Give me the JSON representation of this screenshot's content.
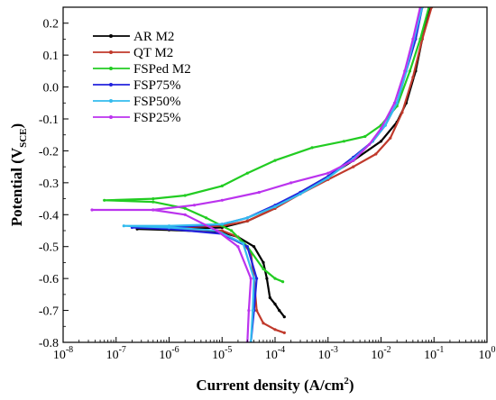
{
  "chart_data": {
    "type": "line",
    "title": "",
    "xlabel": {
      "main": "Current density (A/cm",
      "sup": "2",
      "end": ")"
    },
    "ylabel": {
      "main": "Potential (V",
      "sub": "SCE",
      "end": ")"
    },
    "xscale": "log",
    "xlim": [
      1e-08,
      1
    ],
    "ylim": [
      -0.8,
      0.25
    ],
    "grid": false,
    "legend_position": "top-left",
    "x_ticks": [
      {
        "value": 1e-08,
        "label": "10",
        "exp": "-8"
      },
      {
        "value": 1e-07,
        "label": "10",
        "exp": "-7"
      },
      {
        "value": 1e-06,
        "label": "10",
        "exp": "-6"
      },
      {
        "value": 1e-05,
        "label": "10",
        "exp": "-5"
      },
      {
        "value": 0.0001,
        "label": "10",
        "exp": "-4"
      },
      {
        "value": 0.001,
        "label": "10",
        "exp": "-3"
      },
      {
        "value": 0.01,
        "label": "10",
        "exp": "-2"
      },
      {
        "value": 0.1,
        "label": "10",
        "exp": "-1"
      },
      {
        "value": 1,
        "label": "10",
        "exp": "0"
      }
    ],
    "y_ticks": [
      {
        "value": 0.2,
        "label": "0.2"
      },
      {
        "value": 0.1,
        "label": "0.1"
      },
      {
        "value": 0.0,
        "label": "0.0"
      },
      {
        "value": -0.1,
        "label": "-0.1"
      },
      {
        "value": -0.2,
        "label": "-0.2"
      },
      {
        "value": -0.3,
        "label": "-0.3"
      },
      {
        "value": -0.4,
        "label": "-0.4"
      },
      {
        "value": -0.5,
        "label": "-0.5"
      },
      {
        "value": -0.6,
        "label": "-0.6"
      },
      {
        "value": -0.7,
        "label": "-0.7"
      },
      {
        "value": -0.8,
        "label": "-0.8"
      }
    ],
    "series": [
      {
        "name": "AR M2",
        "color": "#000000",
        "cathodic": [
          [
            0.00015,
            -0.72
          ],
          [
            0.00012,
            -0.7
          ],
          [
            0.0001,
            -0.68
          ],
          [
            8e-05,
            -0.66
          ],
          [
            7e-05,
            -0.6
          ],
          [
            6e-05,
            -0.55
          ],
          [
            4e-05,
            -0.5
          ],
          [
            2e-05,
            -0.47
          ],
          [
            1e-05,
            -0.455
          ],
          [
            1e-06,
            -0.448
          ],
          [
            2.5e-07,
            -0.445
          ]
        ],
        "anodic": [
          [
            2.5e-07,
            -0.445
          ],
          [
            1e-06,
            -0.445
          ],
          [
            1e-05,
            -0.44
          ],
          [
            3e-05,
            -0.42
          ],
          [
            0.0001,
            -0.38
          ],
          [
            0.0003,
            -0.33
          ],
          [
            0.001,
            -0.28
          ],
          [
            0.003,
            -0.23
          ],
          [
            0.01,
            -0.17
          ],
          [
            0.02,
            -0.11
          ],
          [
            0.03,
            -0.05
          ],
          [
            0.045,
            0.05
          ],
          [
            0.06,
            0.15
          ],
          [
            0.085,
            0.25
          ]
        ]
      },
      {
        "name": "QT M2",
        "color": "#c0392b",
        "cathodic": [
          [
            0.00015,
            -0.77
          ],
          [
            0.0001,
            -0.76
          ],
          [
            6e-05,
            -0.74
          ],
          [
            4.5e-05,
            -0.7
          ],
          [
            4e-05,
            -0.6
          ],
          [
            3.5e-05,
            -0.52
          ],
          [
            2e-05,
            -0.47
          ],
          [
            1e-05,
            -0.45
          ],
          [
            1e-06,
            -0.445
          ],
          [
            4e-07,
            -0.44
          ]
        ],
        "anodic": [
          [
            4e-07,
            -0.44
          ],
          [
            1e-06,
            -0.44
          ],
          [
            1e-05,
            -0.435
          ],
          [
            3e-05,
            -0.42
          ],
          [
            0.0001,
            -0.38
          ],
          [
            0.0003,
            -0.335
          ],
          [
            0.001,
            -0.29
          ],
          [
            0.003,
            -0.25
          ],
          [
            0.008,
            -0.21
          ],
          [
            0.015,
            -0.16
          ],
          [
            0.025,
            -0.08
          ],
          [
            0.04,
            0.03
          ],
          [
            0.06,
            0.15
          ],
          [
            0.09,
            0.25
          ]
        ]
      },
      {
        "name": "FSPed M2",
        "color": "#22cc22",
        "cathodic": [
          [
            0.00014,
            -0.61
          ],
          [
            0.0001,
            -0.6
          ],
          [
            6e-05,
            -0.57
          ],
          [
            3e-05,
            -0.5
          ],
          [
            1.5e-05,
            -0.45
          ],
          [
            5e-06,
            -0.41
          ],
          [
            2e-06,
            -0.38
          ],
          [
            5e-07,
            -0.36
          ],
          [
            6e-08,
            -0.355
          ]
        ],
        "anodic": [
          [
            6e-08,
            -0.355
          ],
          [
            5e-07,
            -0.35
          ],
          [
            2e-06,
            -0.34
          ],
          [
            1e-05,
            -0.31
          ],
          [
            3e-05,
            -0.27
          ],
          [
            0.0001,
            -0.23
          ],
          [
            0.0005,
            -0.19
          ],
          [
            0.002,
            -0.17
          ],
          [
            0.005,
            -0.155
          ],
          [
            0.01,
            -0.12
          ],
          [
            0.02,
            -0.06
          ],
          [
            0.035,
            0.05
          ],
          [
            0.055,
            0.15
          ],
          [
            0.08,
            0.25
          ]
        ]
      },
      {
        "name": "FSP75%",
        "color": "#2222dd",
        "cathodic": [
          [
            3.5e-05,
            -0.8
          ],
          [
            4e-05,
            -0.7
          ],
          [
            4.5e-05,
            -0.6
          ],
          [
            3e-05,
            -0.5
          ],
          [
            1e-05,
            -0.46
          ],
          [
            1e-06,
            -0.445
          ],
          [
            2e-07,
            -0.44
          ]
        ],
        "anodic": [
          [
            2e-07,
            -0.44
          ],
          [
            1e-06,
            -0.44
          ],
          [
            1e-05,
            -0.43
          ],
          [
            3e-05,
            -0.41
          ],
          [
            0.0001,
            -0.37
          ],
          [
            0.0003,
            -0.33
          ],
          [
            0.001,
            -0.28
          ],
          [
            0.003,
            -0.22
          ],
          [
            0.007,
            -0.17
          ],
          [
            0.012,
            -0.12
          ],
          [
            0.02,
            -0.05
          ],
          [
            0.03,
            0.05
          ],
          [
            0.045,
            0.15
          ],
          [
            0.06,
            0.25
          ]
        ]
      },
      {
        "name": "FSP50%",
        "color": "#33bbee",
        "cathodic": [
          [
            3.5e-05,
            -0.8
          ],
          [
            3.8e-05,
            -0.7
          ],
          [
            4e-05,
            -0.6
          ],
          [
            2.5e-05,
            -0.49
          ],
          [
            8e-06,
            -0.45
          ],
          [
            1e-06,
            -0.44
          ],
          [
            1.4e-07,
            -0.435
          ]
        ],
        "anodic": [
          [
            1.4e-07,
            -0.435
          ],
          [
            1e-06,
            -0.435
          ],
          [
            1e-05,
            -0.43
          ],
          [
            3e-05,
            -0.41
          ],
          [
            0.0001,
            -0.375
          ],
          [
            0.0003,
            -0.335
          ],
          [
            0.001,
            -0.285
          ],
          [
            0.003,
            -0.225
          ],
          [
            0.007,
            -0.17
          ],
          [
            0.012,
            -0.12
          ],
          [
            0.02,
            -0.05
          ],
          [
            0.03,
            0.05
          ],
          [
            0.042,
            0.15
          ],
          [
            0.06,
            0.25
          ]
        ]
      },
      {
        "name": "FSP25%",
        "color": "#bb33ee",
        "cathodic": [
          [
            3e-05,
            -0.8
          ],
          [
            3.2e-05,
            -0.7
          ],
          [
            3.5e-05,
            -0.6
          ],
          [
            2e-05,
            -0.5
          ],
          [
            8e-06,
            -0.45
          ],
          [
            2e-06,
            -0.4
          ],
          [
            5e-07,
            -0.385
          ],
          [
            3.5e-08,
            -0.385
          ]
        ],
        "anodic": [
          [
            3.5e-08,
            -0.385
          ],
          [
            5e-07,
            -0.385
          ],
          [
            3e-06,
            -0.37
          ],
          [
            1e-05,
            -0.355
          ],
          [
            5e-05,
            -0.33
          ],
          [
            0.0002,
            -0.3
          ],
          [
            0.001,
            -0.27
          ],
          [
            0.003,
            -0.23
          ],
          [
            0.006,
            -0.18
          ],
          [
            0.01,
            -0.13
          ],
          [
            0.018,
            -0.05
          ],
          [
            0.028,
            0.05
          ],
          [
            0.04,
            0.15
          ],
          [
            0.055,
            0.25
          ]
        ]
      }
    ]
  }
}
